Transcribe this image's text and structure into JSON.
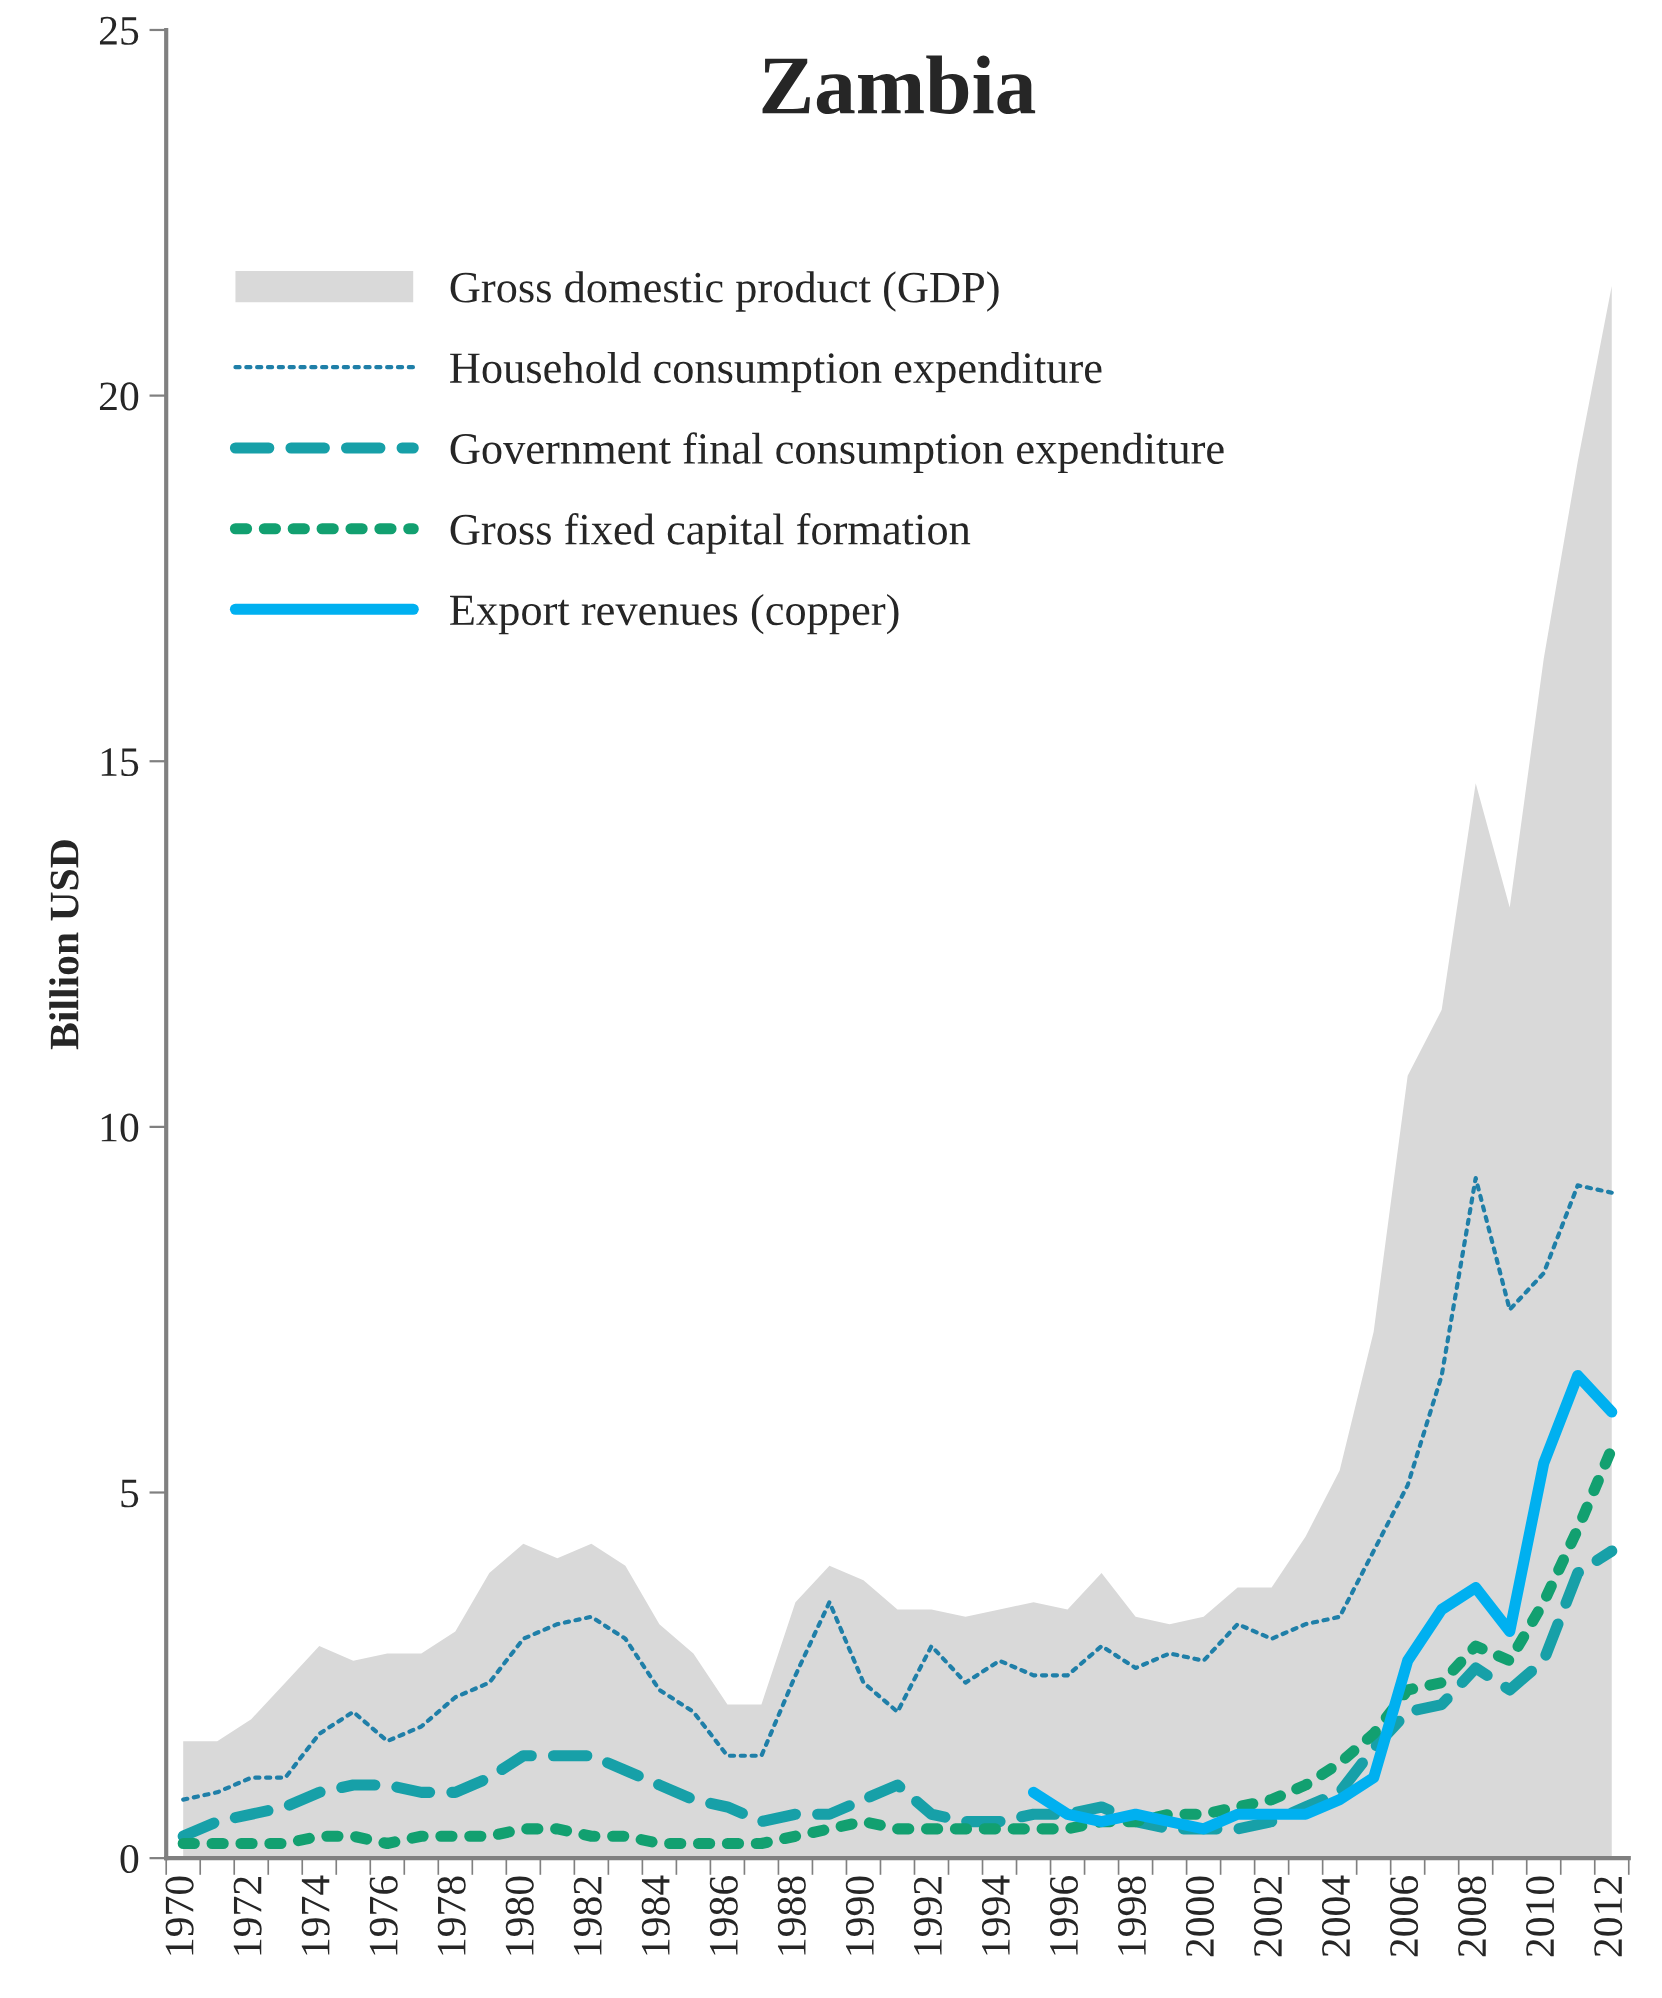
{
  "chart_data": {
    "type": "line",
    "title": "Zambia",
    "ylabel": "Billion USD",
    "categories": [
      "1970",
      null,
      "1972",
      null,
      "1974",
      null,
      "1976",
      null,
      "1978",
      null,
      "1980",
      null,
      "1982",
      null,
      "1984",
      null,
      "1986",
      null,
      "1988",
      null,
      "1990",
      null,
      "1992",
      null,
      "1994",
      null,
      "1996",
      null,
      "1998",
      null,
      "2000",
      null,
      "2002",
      null,
      "2004",
      null,
      "2006",
      null,
      "2008",
      null,
      "2010",
      null,
      "2012"
    ],
    "ylim": [
      0,
      25
    ],
    "yticks": [
      0,
      5,
      10,
      15,
      20,
      25
    ],
    "grid": false,
    "legend": "top left",
    "marker": "none",
    "series": [
      {
        "name": "Gross domestic product (GDP)",
        "type": "area",
        "color": "#d9d9d9",
        "values": [
          1.6,
          1.6,
          1.9,
          2.4,
          2.9,
          2.7,
          2.8,
          2.8,
          3.1,
          3.9,
          4.3,
          4.1,
          4.3,
          4.0,
          3.2,
          2.8,
          2.1,
          2.1,
          3.5,
          4.0,
          3.8,
          3.4,
          3.4,
          3.3,
          3.4,
          3.5,
          3.4,
          3.9,
          3.3,
          3.2,
          3.3,
          3.7,
          3.7,
          4.4,
          5.3,
          7.2,
          10.7,
          11.6,
          14.7,
          13.0,
          16.4,
          19.1,
          21.5
        ]
      },
      {
        "name": "Household consumption expenditure",
        "line_style": "dotted",
        "color": "#1f7fa8",
        "values": [
          0.8,
          0.9,
          1.1,
          1.1,
          1.7,
          2.0,
          1.6,
          1.8,
          2.2,
          2.4,
          3.0,
          3.2,
          3.3,
          3.0,
          2.3,
          2.0,
          1.4,
          1.4,
          2.5,
          3.5,
          2.4,
          2.0,
          2.9,
          2.4,
          2.7,
          2.5,
          2.5,
          2.9,
          2.6,
          2.8,
          2.7,
          3.2,
          3.0,
          3.2,
          3.3,
          4.2,
          5.1,
          6.6,
          9.3,
          7.5,
          8.0,
          9.2,
          9.1
        ]
      },
      {
        "name": "Government final consumption expenditure",
        "line_style": "dashed",
        "color": "#17a0a8",
        "values": [
          0.3,
          0.5,
          0.6,
          0.7,
          0.9,
          1.0,
          1.0,
          0.9,
          0.9,
          1.1,
          1.4,
          1.4,
          1.4,
          1.2,
          1.0,
          0.8,
          0.7,
          0.5,
          0.6,
          0.6,
          0.8,
          1.0,
          0.6,
          0.5,
          0.5,
          0.6,
          0.6,
          0.7,
          0.5,
          0.4,
          0.4,
          0.4,
          0.5,
          0.7,
          0.9,
          1.5,
          2.0,
          2.1,
          2.6,
          2.3,
          2.7,
          3.9,
          4.2
        ]
      },
      {
        "name": "Gross fixed capital formation",
        "line_style": "dotted",
        "color": "#12a070",
        "values": [
          0.2,
          0.2,
          0.2,
          0.2,
          0.3,
          0.3,
          0.2,
          0.3,
          0.3,
          0.3,
          0.4,
          0.4,
          0.3,
          0.3,
          0.2,
          0.2,
          0.2,
          0.2,
          0.3,
          0.4,
          0.5,
          0.4,
          0.4,
          0.4,
          0.4,
          0.4,
          0.4,
          0.5,
          0.5,
          0.6,
          0.6,
          0.7,
          0.8,
          1.0,
          1.3,
          1.7,
          2.3,
          2.4,
          2.9,
          2.7,
          3.5,
          4.5,
          5.6
        ]
      },
      {
        "name": "Export revenues (copper)",
        "line_style": "solid",
        "color": "#00b0f0",
        "values": [
          null,
          null,
          null,
          null,
          null,
          null,
          null,
          null,
          null,
          null,
          null,
          null,
          null,
          null,
          null,
          null,
          null,
          null,
          null,
          null,
          null,
          null,
          null,
          null,
          null,
          0.9,
          0.6,
          0.5,
          0.6,
          0.5,
          0.4,
          0.6,
          0.6,
          0.6,
          0.8,
          1.1,
          2.7,
          3.4,
          3.7,
          3.1,
          5.4,
          6.6,
          6.1
        ]
      }
    ]
  }
}
